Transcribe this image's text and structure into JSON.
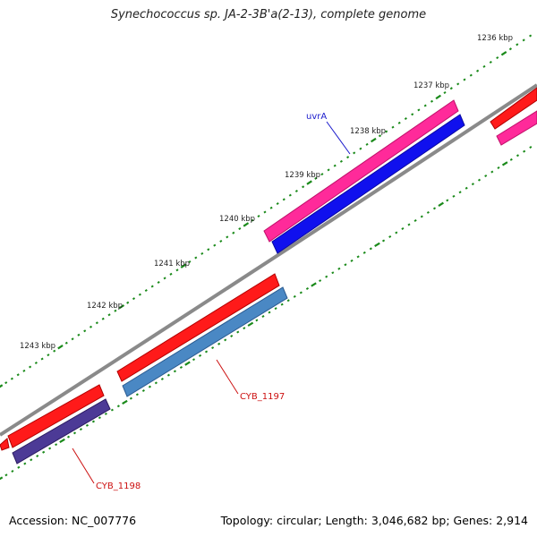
{
  "title": "Synechococcus sp. JA-2-3B'a(2-13), complete genome",
  "footer": {
    "accession": "Accession: NC_007776",
    "summary": "Topology: circular; Length: 3,046,682 bp; Genes: 2,914"
  },
  "ruler_labels": [
    "1236 kbp",
    "1237 kbp",
    "1238 kbp",
    "1239 kbp",
    "1240 kbp",
    "1241 kbp",
    "1242 kbp",
    "1243 kbp"
  ],
  "gene_labels": [
    {
      "name": "uvrA",
      "color": "#1a1acc"
    },
    {
      "name": "CYB_1197",
      "color": "#cc1010"
    },
    {
      "name": "CYB_1198",
      "color": "#cc1010"
    }
  ],
  "colors": {
    "backbone": "#8a8a8a",
    "cds_forward": "#ff1a1a",
    "cds_forward_pink": "#ff2a9a",
    "cds_blue": "#1010ee",
    "cds_steelblue": "#4a88c4",
    "cds_purple": "#4c3a96",
    "tick": "#1a8a1a"
  }
}
